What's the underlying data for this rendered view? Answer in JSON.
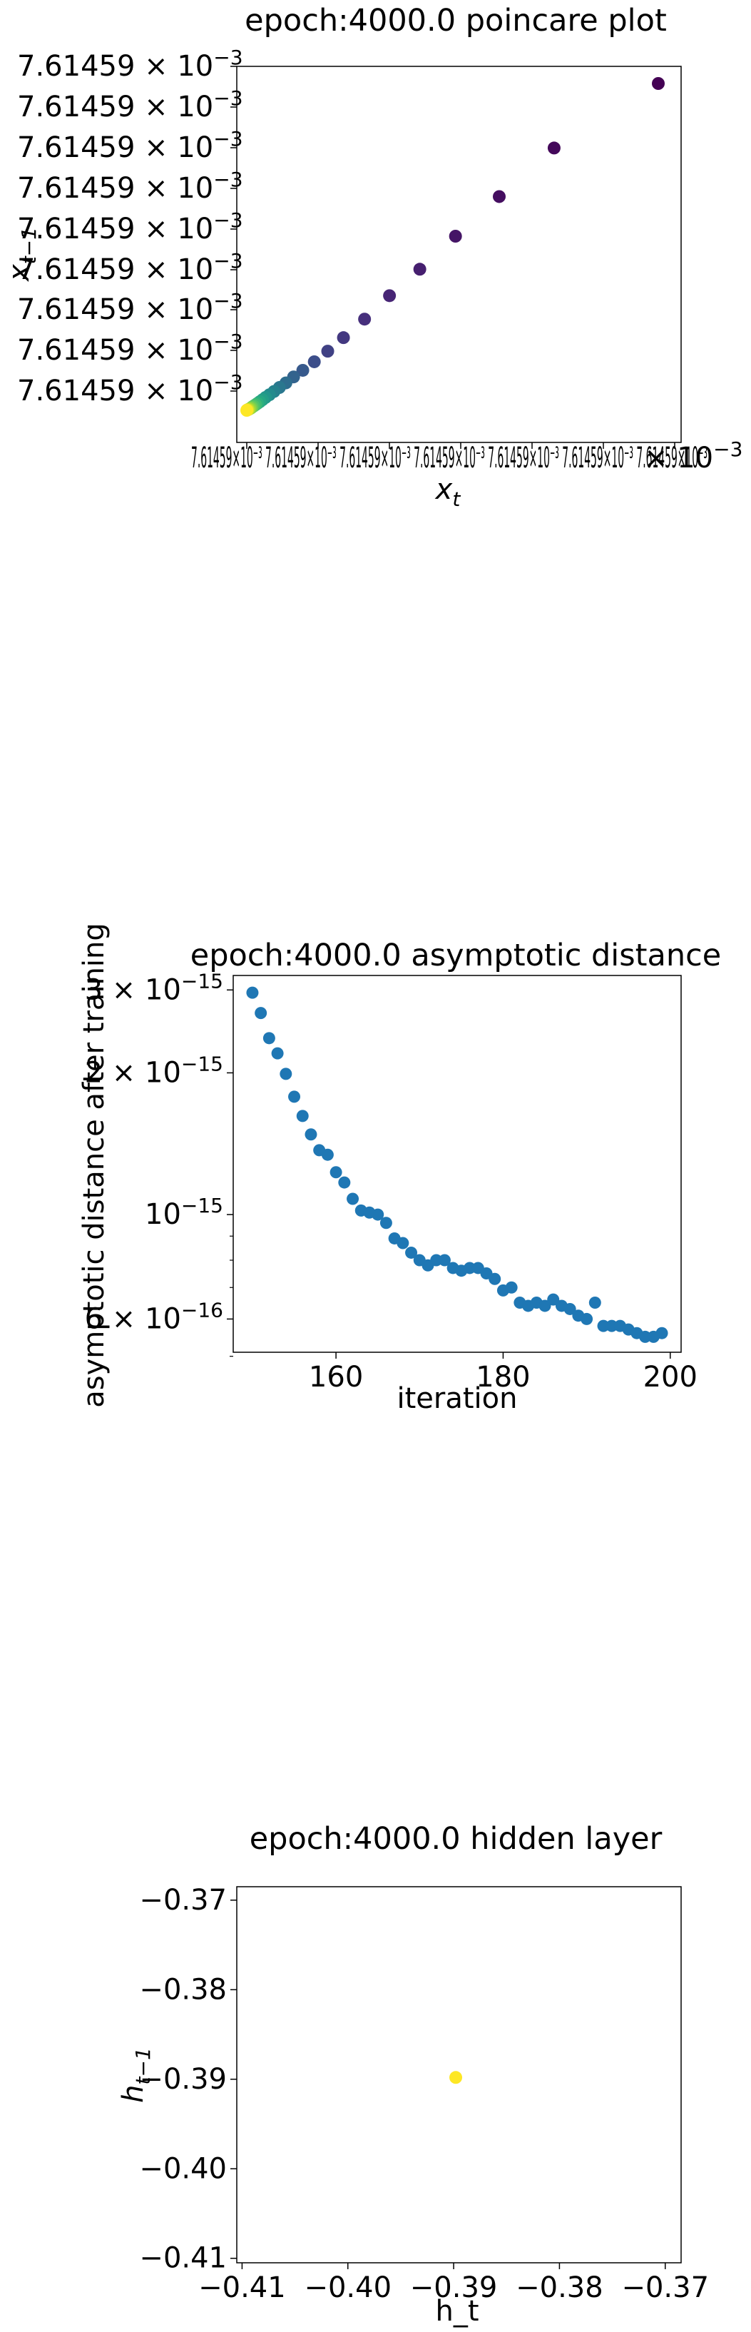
{
  "chart_data": [
    {
      "type": "scatter",
      "title": "epoch:4000.0 poincare plot",
      "xlabel_base": "x",
      "xlabel_sub": "t",
      "ylabel_base": "x",
      "ylabel_sub": "t−1",
      "ytick_label": "7.61459",
      "ytick_count": 9,
      "xtick_text": "7.61459×10⁻³ 7.61459×10⁻³ 7.61459×10⁻³ 7.61459×10⁻³ 7.61459×10⁻³ 7.61459×10⁻³ 7.61459×10⁻³",
      "exponent_label": "× 10",
      "exponent_value": "−3",
      "colormap": "viridis",
      "colors": [
        "#440154",
        "#472a7a",
        "#3b518b",
        "#2c718e",
        "#21908d",
        "#27ad81",
        "#5cc863",
        "#aadc32",
        "#fde725"
      ],
      "points": [
        {
          "x": 1.0,
          "y": 1.0,
          "c": 0.0
        },
        {
          "x": 0.801,
          "y": 0.794,
          "c": 0.02
        },
        {
          "x": 0.658,
          "y": 0.647,
          "c": 0.04
        },
        {
          "x": 0.544,
          "y": 0.527,
          "c": 0.06
        },
        {
          "x": 0.451,
          "y": 0.427,
          "c": 0.09
        },
        {
          "x": 0.372,
          "y": 0.347,
          "c": 0.11
        },
        {
          "x": 0.307,
          "y": 0.276,
          "c": 0.14
        },
        {
          "x": 0.252,
          "y": 0.22,
          "c": 0.17
        },
        {
          "x": 0.211,
          "y": 0.179,
          "c": 0.2
        },
        {
          "x": 0.176,
          "y": 0.147,
          "c": 0.24
        },
        {
          "x": 0.146,
          "y": 0.121,
          "c": 0.28
        },
        {
          "x": 0.122,
          "y": 0.101,
          "c": 0.32
        },
        {
          "x": 0.102,
          "y": 0.083,
          "c": 0.36
        },
        {
          "x": 0.085,
          "y": 0.069,
          "c": 0.4
        },
        {
          "x": 0.071,
          "y": 0.057,
          "c": 0.44
        },
        {
          "x": 0.059,
          "y": 0.047,
          "c": 0.48
        },
        {
          "x": 0.049,
          "y": 0.039,
          "c": 0.52
        },
        {
          "x": 0.041,
          "y": 0.032,
          "c": 0.56
        },
        {
          "x": 0.034,
          "y": 0.026,
          "c": 0.6
        },
        {
          "x": 0.028,
          "y": 0.021,
          "c": 0.64
        },
        {
          "x": 0.023,
          "y": 0.017,
          "c": 0.68
        },
        {
          "x": 0.018,
          "y": 0.013,
          "c": 0.72
        },
        {
          "x": 0.014,
          "y": 0.01,
          "c": 0.76
        },
        {
          "x": 0.011,
          "y": 0.007,
          "c": 0.8
        },
        {
          "x": 0.008,
          "y": 0.005,
          "c": 0.84
        },
        {
          "x": 0.005,
          "y": 0.003,
          "c": 0.88
        },
        {
          "x": 0.003,
          "y": 0.002,
          "c": 0.92
        },
        {
          "x": 0.001,
          "y": 0.001,
          "c": 0.96
        },
        {
          "x": 0.0,
          "y": 0.0,
          "c": 1.0
        }
      ],
      "grid": false
    },
    {
      "type": "scatter",
      "title": "epoch:4000.0 asymptotic distance",
      "xlabel": "iteration",
      "ylabel": "asymptotic distance after training",
      "yscale": "log",
      "xlim": [
        147.7,
        201.3
      ],
      "ylim": [
        5.1e-16,
        3.22e-15
      ],
      "xticks": [
        160,
        180,
        200
      ],
      "yticks": [
        {
          "value": 6e-16,
          "mantissa": "6",
          "exp": "−16"
        },
        {
          "value": 1e-15,
          "mantissa": "",
          "exp": "−15"
        },
        {
          "value": 2e-15,
          "mantissa": "2",
          "exp": "−15"
        },
        {
          "value": 3e-15,
          "mantissa": "3",
          "exp": "−15"
        }
      ],
      "ytick_times": "×",
      "ytick_base": "10",
      "minor_yticks": [
        5e-16,
        7e-16,
        8e-16,
        9e-16
      ],
      "marker_color": "#1f77b4",
      "x": [
        150,
        151,
        152,
        153,
        154,
        155,
        156,
        157,
        158,
        159,
        160,
        161,
        162,
        163,
        164,
        165,
        166,
        167,
        168,
        169,
        170,
        171,
        172,
        173,
        174,
        175,
        176,
        177,
        178,
        179,
        180,
        181,
        182,
        183,
        184,
        185,
        186,
        187,
        188,
        189,
        190,
        191,
        192,
        193,
        194,
        195,
        196,
        197,
        198,
        199
      ],
      "y": [
        2.96e-15,
        2.68e-15,
        2.37e-15,
        2.2e-15,
        1.99e-15,
        1.78e-15,
        1.62e-15,
        1.48e-15,
        1.37e-15,
        1.34e-15,
        1.23e-15,
        1.17e-15,
        1.08e-15,
        1.02e-15,
        1.01e-15,
        1e-15,
        9.6e-16,
        8.9e-16,
        8.7e-16,
        8.3e-16,
        8e-16,
        7.8e-16,
        8e-16,
        8e-16,
        7.7e-16,
        7.6e-16,
        7.7e-16,
        7.7e-16,
        7.5e-16,
        7.3e-16,
        6.9e-16,
        7e-16,
        6.5e-16,
        6.4e-16,
        6.5e-16,
        6.4e-16,
        6.6e-16,
        6.4e-16,
        6.3e-16,
        6.1e-16,
        6e-16,
        6.5e-16,
        5.8e-16,
        5.8e-16,
        5.8e-16,
        5.7e-16,
        5.6e-16,
        5.5e-16,
        5.5e-16,
        5.6e-16
      ],
      "grid": false
    },
    {
      "type": "scatter",
      "title": "epoch:4000.0 hidden layer",
      "xlabel": "h_t",
      "ylabel_base": "h",
      "ylabel_sub": "t−1",
      "xlim": [
        -0.4105,
        -0.3685
      ],
      "ylim": [
        -0.4105,
        -0.3685
      ],
      "xticks": [
        {
          "value": -0.41,
          "label": "−0.41"
        },
        {
          "value": -0.4,
          "label": "−0.40"
        },
        {
          "value": -0.39,
          "label": "−0.39"
        },
        {
          "value": -0.38,
          "label": "−0.38"
        },
        {
          "value": -0.37,
          "label": "−0.37"
        }
      ],
      "yticks": [
        {
          "value": -0.41,
          "label": "−0.41"
        },
        {
          "value": -0.4,
          "label": "−0.40"
        },
        {
          "value": -0.39,
          "label": "−0.39"
        },
        {
          "value": -0.38,
          "label": "−0.38"
        },
        {
          "value": -0.37,
          "label": "−0.37"
        }
      ],
      "points": [
        {
          "x": -0.3898,
          "y": -0.3898
        }
      ],
      "marker_color": "#fde725",
      "grid": false
    }
  ]
}
